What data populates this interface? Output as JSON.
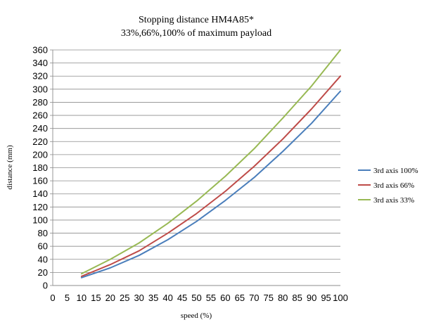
{
  "chart_data": {
    "type": "line",
    "title": "Stopping distance HM4A85*",
    "subtitle": "33%,66%,100% of maximum payload",
    "xlabel": "speed (%)",
    "ylabel": "distance (mm)",
    "x_ticks": [
      0,
      5,
      10,
      15,
      20,
      25,
      30,
      35,
      40,
      45,
      50,
      55,
      60,
      65,
      70,
      75,
      80,
      85,
      90,
      95,
      100
    ],
    "xlim": [
      0,
      100
    ],
    "ylim": [
      0,
      360
    ],
    "y_step": 20,
    "grid": true,
    "legend_position": "right",
    "x": [
      10,
      20,
      30,
      40,
      50,
      60,
      70,
      80,
      90,
      100
    ],
    "series": [
      {
        "name": "3rd axis 100%",
        "color": "#4a7ebb",
        "values": [
          12,
          27,
          46,
          70,
          98,
          130,
          165,
          205,
          248,
          297
        ]
      },
      {
        "name": "3rd axis 66%",
        "color": "#be4b48",
        "values": [
          14,
          32,
          53,
          80,
          110,
          144,
          182,
          224,
          270,
          320
        ]
      },
      {
        "name": "3rd axis 33%",
        "color": "#98b954",
        "values": [
          18,
          40,
          65,
          95,
          129,
          167,
          209,
          256,
          305,
          360
        ]
      }
    ]
  }
}
